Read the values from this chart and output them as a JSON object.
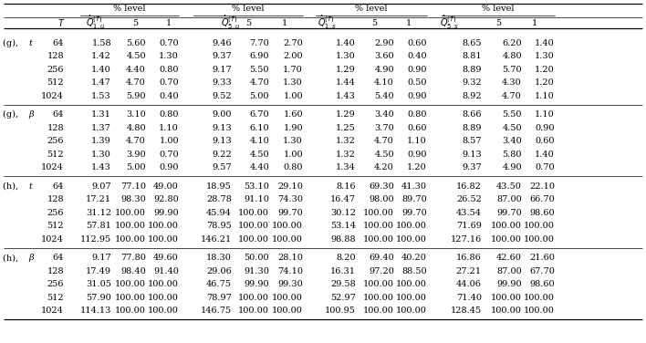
{
  "q1u_label": "$\\hat{Q}_{1,u}^{(T)}$",
  "q5u_label": "$\\hat{Q}_{5,u}^{(T)}$",
  "q1s_label": "$\\hat{Q}_{1,s}^{(T)}$",
  "q5s_label": "$\\hat{Q}_{5,s}^{(T)}$",
  "groups": [
    {
      "label_roman": "(g),",
      "label_italic": "t",
      "rows": [
        [
          64,
          1.58,
          5.6,
          0.7,
          9.46,
          7.7,
          2.7,
          1.4,
          2.9,
          0.6,
          8.65,
          6.2,
          1.4
        ],
        [
          128,
          1.42,
          4.5,
          1.3,
          9.37,
          6.9,
          2.0,
          1.3,
          3.6,
          0.4,
          8.81,
          4.8,
          1.3
        ],
        [
          256,
          1.4,
          4.4,
          0.8,
          9.17,
          5.5,
          1.7,
          1.29,
          4.9,
          0.9,
          8.89,
          5.7,
          1.2
        ],
        [
          512,
          1.47,
          4.7,
          0.7,
          9.33,
          4.7,
          1.3,
          1.44,
          4.1,
          0.5,
          9.32,
          4.3,
          1.2
        ],
        [
          1024,
          1.53,
          5.9,
          0.4,
          9.52,
          5.0,
          1.0,
          1.43,
          5.4,
          0.9,
          8.92,
          4.7,
          1.1
        ]
      ]
    },
    {
      "label_roman": "(g),",
      "label_italic": "β",
      "rows": [
        [
          64,
          1.31,
          3.1,
          0.8,
          9.0,
          6.7,
          1.6,
          1.29,
          3.4,
          0.8,
          8.66,
          5.5,
          1.1
        ],
        [
          128,
          1.37,
          4.8,
          1.1,
          9.13,
          6.1,
          1.9,
          1.25,
          3.7,
          0.6,
          8.89,
          4.5,
          0.9
        ],
        [
          256,
          1.39,
          4.7,
          1.0,
          9.13,
          4.1,
          1.3,
          1.32,
          4.7,
          1.1,
          8.57,
          3.4,
          0.6
        ],
        [
          512,
          1.3,
          3.9,
          0.7,
          9.22,
          4.5,
          1.0,
          1.32,
          4.5,
          0.9,
          9.13,
          5.8,
          1.4
        ],
        [
          1024,
          1.43,
          5.0,
          0.9,
          9.57,
          4.4,
          0.8,
          1.34,
          4.2,
          1.2,
          9.37,
          4.9,
          0.7
        ]
      ]
    },
    {
      "label_roman": "(h),",
      "label_italic": "t",
      "rows": [
        [
          64,
          9.07,
          77.1,
          49.0,
          18.95,
          53.1,
          29.1,
          8.16,
          69.3,
          41.3,
          16.82,
          43.5,
          22.1
        ],
        [
          128,
          17.21,
          98.3,
          92.8,
          28.78,
          91.1,
          74.3,
          16.47,
          98.0,
          89.7,
          26.52,
          87.0,
          66.7
        ],
        [
          256,
          31.12,
          100.0,
          99.9,
          45.94,
          100.0,
          99.7,
          30.12,
          100.0,
          99.7,
          43.54,
          99.7,
          98.6
        ],
        [
          512,
          57.81,
          100.0,
          100.0,
          78.95,
          100.0,
          100.0,
          53.14,
          100.0,
          100.0,
          71.69,
          100.0,
          100.0
        ],
        [
          1024,
          112.95,
          100.0,
          100.0,
          146.21,
          100.0,
          100.0,
          98.88,
          100.0,
          100.0,
          127.16,
          100.0,
          100.0
        ]
      ]
    },
    {
      "label_roman": "(h),",
      "label_italic": "β",
      "rows": [
        [
          64,
          9.17,
          77.8,
          49.6,
          18.3,
          50.0,
          28.1,
          8.2,
          69.4,
          40.2,
          16.86,
          42.6,
          21.6
        ],
        [
          128,
          17.49,
          98.4,
          91.4,
          29.06,
          91.3,
          74.1,
          16.31,
          97.2,
          88.5,
          27.21,
          87.0,
          67.7
        ],
        [
          256,
          31.05,
          100.0,
          100.0,
          46.75,
          99.9,
          99.3,
          29.58,
          100.0,
          100.0,
          44.06,
          99.9,
          98.6
        ],
        [
          512,
          57.9,
          100.0,
          100.0,
          78.97,
          100.0,
          100.0,
          52.97,
          100.0,
          100.0,
          71.4,
          100.0,
          100.0
        ],
        [
          1024,
          114.13,
          100.0,
          100.0,
          146.75,
          100.0,
          100.0,
          100.95,
          100.0,
          100.0,
          128.45,
          100.0,
          100.0
        ]
      ]
    }
  ]
}
